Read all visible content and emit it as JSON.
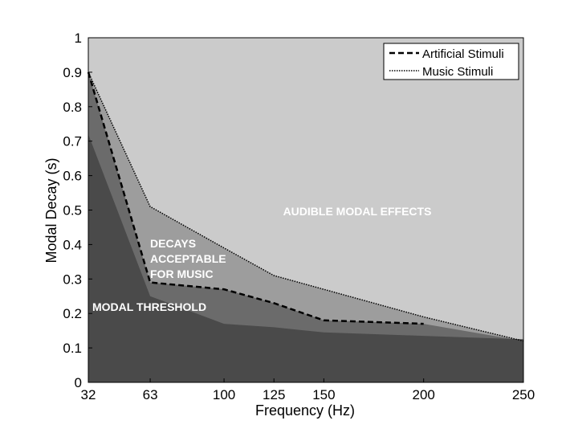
{
  "chart_data": {
    "type": "area",
    "xlabel": "Frequency (Hz)",
    "ylabel": "Modal Decay (s)",
    "xlim": [
      32,
      250
    ],
    "ylim": [
      0,
      1
    ],
    "x_ticks": [
      32,
      63,
      100,
      125,
      150,
      200,
      250
    ],
    "y_ticks": [
      0,
      0.1,
      0.2,
      0.3,
      0.4,
      0.5,
      0.6,
      0.7,
      0.8,
      0.9,
      1
    ],
    "grid": false,
    "legend_position": "top-right",
    "colors": {
      "background": "#cbcbcb",
      "acceptable_region": "#9d9d9d",
      "transition_region": "#6b6b6b",
      "threshold_region": "#4a4a4a",
      "lines": "#000000"
    },
    "regions": [
      {
        "label": "AUDIBLE MODAL EFFECTS",
        "x": [
          32,
          250
        ],
        "upper": [
          1,
          1
        ]
      },
      {
        "label": "DECAYS ACCEPTABLE FOR MUSIC",
        "x": [
          32,
          63,
          100,
          125,
          150,
          200,
          250
        ],
        "upper": [
          0.9,
          0.51,
          0.39,
          0.31,
          0.27,
          0.19,
          0.12
        ]
      },
      {
        "label": "",
        "x": [
          32,
          63,
          100,
          125,
          150,
          200,
          250
        ],
        "upper": [
          0.9,
          0.29,
          0.27,
          0.23,
          0.18,
          0.17,
          0.12
        ]
      },
      {
        "label": "MODAL THRESHOLD",
        "x": [
          32,
          63,
          100,
          125,
          150,
          200,
          250
        ],
        "upper": [
          0.72,
          0.25,
          0.17,
          0.16,
          0.145,
          0.135,
          0.125
        ]
      }
    ],
    "series": [
      {
        "name": "Artificial Stimuli",
        "style": "dashed",
        "x": [
          32,
          63,
          100,
          125,
          150,
          200
        ],
        "values": [
          0.9,
          0.29,
          0.27,
          0.23,
          0.18,
          0.17
        ]
      },
      {
        "name": "Music Stimuli",
        "style": "dotted",
        "x": [
          32,
          63,
          100,
          125,
          150,
          200,
          250
        ],
        "values": [
          0.9,
          0.51,
          0.39,
          0.31,
          0.27,
          0.19,
          0.12
        ]
      }
    ],
    "region_label_lines": {
      "audible": [
        "AUDIBLE MODAL EFFECTS"
      ],
      "acceptable": [
        "DECAYS",
        "ACCEPTABLE",
        "FOR MUSIC"
      ],
      "threshold": [
        "MODAL THRESHOLD"
      ]
    }
  }
}
